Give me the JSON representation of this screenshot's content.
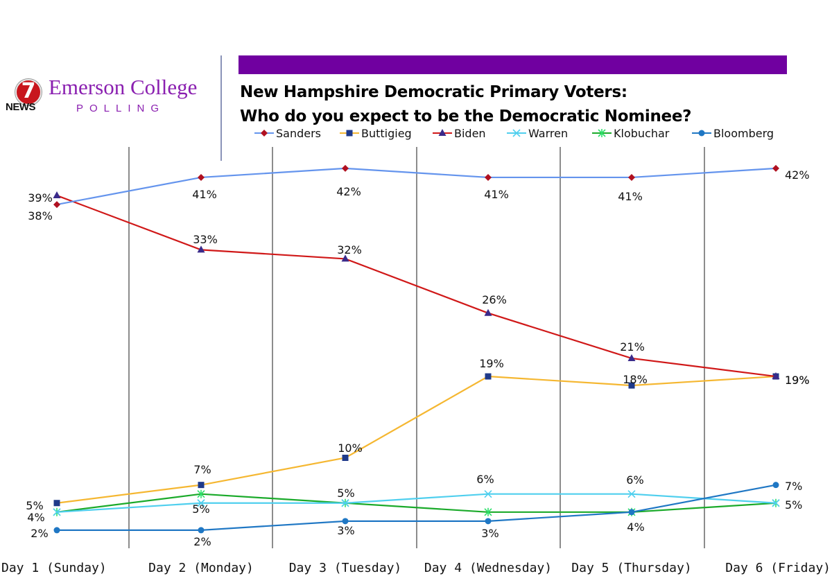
{
  "logo": {
    "station_number": "7",
    "station_label": "NEWS",
    "brand_name": "Emerson College",
    "brand_sub": "POLLING"
  },
  "colors": {
    "banner": "#7000a0",
    "brand": "#8a1fb0",
    "gridline": "#8c8c8c"
  },
  "chart_data": {
    "type": "line",
    "title_line1": "New Hampshire Democratic Primary Voters:",
    "title_line2": "Who do you expect to be the Democratic Nominee?",
    "categories": [
      "Day 1 (Sunday)",
      "Day 2 (Monday)",
      "Day 3 (Tuesday)",
      "Day 4 (Wednesday)",
      "Day 5 (Thursday)",
      "Day 6 (Friday)"
    ],
    "ylim": [
      0,
      45
    ],
    "legend_position": "top",
    "grid": "vertical category separators",
    "series": [
      {
        "name": "Sanders",
        "color": "#6494ed",
        "marker": "diamond",
        "marker_color": "#b01020",
        "values": [
          38,
          41,
          42,
          41,
          41,
          42
        ],
        "labels": [
          "38%",
          "41%",
          "42%",
          "41%",
          "41%",
          "42%"
        ]
      },
      {
        "name": "Buttigieg",
        "color": "#f5b731",
        "marker": "square",
        "marker_color": "#1f3a8a",
        "values": [
          5,
          7,
          10,
          19,
          18,
          19
        ],
        "labels": [
          "5%",
          "7%",
          "10%",
          "19%",
          "18%",
          "19%"
        ]
      },
      {
        "name": "Biden",
        "color": "#d01818",
        "marker": "triangle",
        "marker_color": "#3a2a8a",
        "values": [
          39,
          33,
          32,
          26,
          21,
          19
        ],
        "labels": [
          "39%",
          "33%",
          "32%",
          "26%",
          "21%",
          "19%"
        ]
      },
      {
        "name": "Warren",
        "color": "#4fcfee",
        "marker": "x",
        "marker_color": "#4fcfee",
        "values": [
          4,
          5,
          5,
          6,
          6,
          5
        ],
        "labels": [
          "4%",
          "5%",
          "5%",
          "6%",
          "6%",
          "5%"
        ]
      },
      {
        "name": "Klobuchar",
        "color": "#1aaa2a",
        "marker": "star",
        "marker_color": "#2de06a",
        "values": [
          4,
          6,
          5,
          4,
          4,
          5
        ],
        "labels": []
      },
      {
        "name": "Bloomberg",
        "color": "#1f77c4",
        "marker": "circle",
        "marker_color": "#1f77c4",
        "values": [
          2,
          2,
          3,
          3,
          4,
          7
        ],
        "labels": [
          "2%",
          "2%",
          "3%",
          "3%",
          "4%",
          "7%"
        ]
      }
    ]
  }
}
